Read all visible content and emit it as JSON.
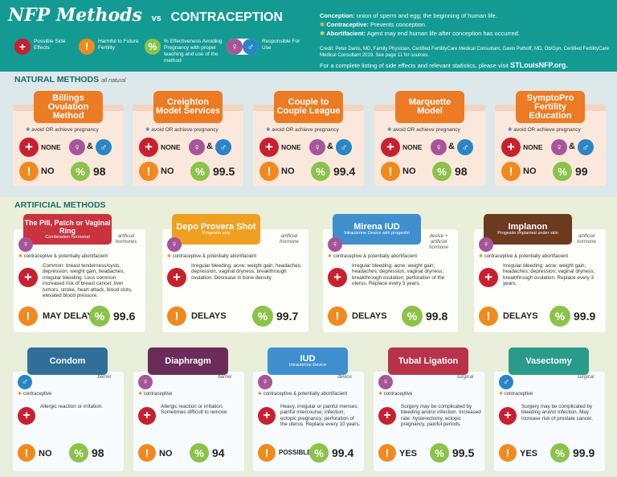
{
  "header": {
    "title_main": "NFP Methods",
    "title_vs": "vs",
    "title_contra": "CONTRACEPTION",
    "legend": [
      {
        "icon": "plus-icon",
        "label": "Possible Side Effects"
      },
      {
        "icon": "exclamation-icon",
        "label": "Harmful to Future Fertility"
      },
      {
        "icon": "percent-icon",
        "label": "% Effectiveness Avoiding Pregnancy with proper teaching and use of the method"
      },
      {
        "icon": "male-female-icon",
        "label": "Responsible For Use"
      }
    ],
    "defs": [
      {
        "term": "Conception:",
        "text": "union of sperm and egg; the beginning of human life."
      },
      {
        "term": "Contraceptive:",
        "text": "Prevents conception."
      },
      {
        "term": "Abortifacient:",
        "text": "Agent may end human life after conception has occurred."
      }
    ],
    "credit": "Credit: Peter Danis, MD, Family Physician, Certified FertilityCare Medical Consultant, Gavin Puthoff, MD, Ob/Gyn, Certified FertilityCare Medical Consultant 2019. See page 11 for sources.",
    "more_text": "For a complete listing of side effects and relevant statistics, please visit",
    "more_link": "STLouisNFP.org."
  },
  "natural": {
    "label": "NATURAL METHODS",
    "sublabel": "all natural",
    "methods": [
      {
        "name": "Billings Ovulation Method",
        "note": "avoid OR achieve pregnancy",
        "side": "NONE",
        "harm": "NO",
        "pct": "98"
      },
      {
        "name": "Creighton Model Services",
        "note": "avoid OR achieve pregnancy",
        "side": "NONE",
        "harm": "NO",
        "pct": "99.5"
      },
      {
        "name": "Couple to Couple League",
        "note": "avoid OR achieve pregnancy",
        "side": "NONE",
        "harm": "NO",
        "pct": "99.4"
      },
      {
        "name": "Marquette Model",
        "note": "avoid OR achieve pregnancy",
        "side": "NONE",
        "harm": "NO",
        "pct": "98"
      },
      {
        "name": "SymptoPro Fertility Education",
        "note": "avoid OR achieve pregnancy",
        "side": "NONE",
        "harm": "NO",
        "pct": "99"
      }
    ],
    "amp": "&"
  },
  "artificial": {
    "label": "ARTIFICIAL METHODS",
    "row1": [
      {
        "name": "The Pill, Patch or Vaginal Ring",
        "sub": "Combination hormonal",
        "tag": "artificial hormones",
        "note": "contraceptive & potentially abortifacient",
        "side": "Common: breast tenderness/cysts, depression, weight gain, headaches, irregular bleeding. Less common: increased risk of breast cancer, liver tumors, stroke, heart attack, blood clots, elevated blood pressure.",
        "harm": "MAY DELAY",
        "pct": "99.6",
        "color": "#c8333f"
      },
      {
        "name": "Depo Provera Shot",
        "sub": "Progestin only",
        "tag": "artificial hormone",
        "note": "contraceptive & potentially abortifacient",
        "side": "Irregular bleeding; acne; weight gain; headaches; depression, vaginal dryness; breakthrough ovulation. Decrease in bone density.",
        "harm": "DELAYS",
        "pct": "99.7",
        "color": "#f0a020"
      },
      {
        "name": "Mirena IUD",
        "sub": "Intrauterine Device with progestin",
        "tag": "device + artificial hormone",
        "note": "contraceptive & potentially abortifacient",
        "side": "Irregular bleeding; acne; weight gain; headaches; depression, vaginal dryness; breakthrough ovulation; perforation of the uterus. Replace every 5 years.",
        "harm": "DELAYS",
        "pct": "99.8",
        "color": "#3f8fcf"
      },
      {
        "name": "Implanon",
        "sub": "Progestin implanted under skin",
        "tag": "artificial hormone",
        "note": "contraceptive & potentially abortifacient",
        "side": "Irregular bleeding; acne; weight gain; headaches; depression; vaginal dryness; breakthrough ovulation. Replace every 3 years.",
        "harm": "DELAYS",
        "pct": "99.9",
        "color": "#6b3a1f"
      }
    ],
    "row2": [
      {
        "name": "Condom",
        "sub": "",
        "tag": "barrier",
        "note": "contraceptive",
        "side": "Allergic reaction or irritation.",
        "harm": "NO",
        "pct": "98",
        "color": "#2f6f9a"
      },
      {
        "name": "Diaphragm",
        "sub": "",
        "tag": "barrier",
        "note": "contraceptive",
        "side": "Allergic reaction or irritation; Sometimes difficult to remove",
        "harm": "NO",
        "pct": "94",
        "color": "#6b2c5a"
      },
      {
        "name": "IUD",
        "sub": "Intrauterine Device",
        "tag": "device",
        "note": "contraceptive & potentially abortifacient",
        "side": "Heavy, irregular or painful menses; painful intercourse; infection; ectopic pregnancy; perforation of the uterus. Replace every 10 years.",
        "harm": "POSSIBLE",
        "pct": "99.4",
        "color": "#3f8fcf"
      },
      {
        "name": "Tubal Ligation",
        "sub": "",
        "tag": "surgical",
        "note": "contraceptive",
        "side": "Surgery may be complicated by bleeding and/or infection. Increased rate: hysterectomy, ectopic pregnancy, painful periods.",
        "harm": "YES",
        "pct": "99.5",
        "color": "#b8334a"
      },
      {
        "name": "Vasectomy",
        "sub": "",
        "tag": "surgical",
        "note": "contraceptive",
        "side": "Surgery may be complicated by bleeding and/or infection. May increase risk of prostate cancer.",
        "harm": "YES",
        "pct": "99.9",
        "color": "#2a9a8a"
      }
    ]
  }
}
